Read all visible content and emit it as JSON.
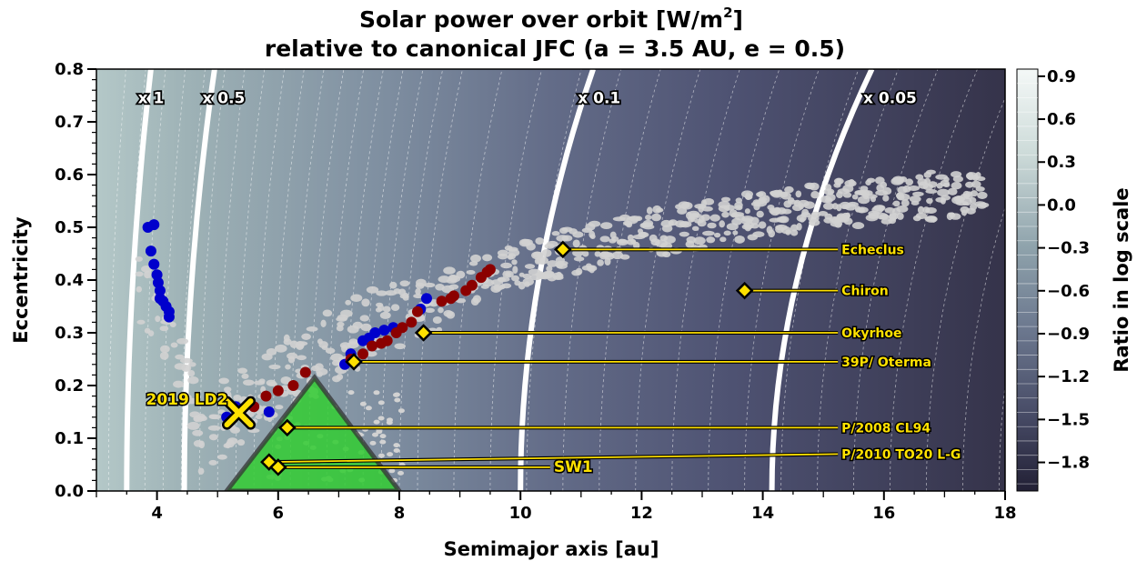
{
  "chart_data": {
    "type": "scatter",
    "title_line1": "Solar power over orbit [W/m",
    "title_sup": "2",
    "title_line1_end": "]",
    "title_line2": "relative to canonical JFC (a = 3.5 AU, e = 0.5)",
    "xlabel": "Semimajor axis [au]",
    "ylabel": "Eccentricity",
    "xlim": [
      3,
      18
    ],
    "ylim": [
      0,
      0.8
    ],
    "x_ticks": [
      "4",
      "6",
      "8",
      "10",
      "12",
      "14",
      "16",
      "18"
    ],
    "y_ticks": [
      "0.0",
      "0.1",
      "0.2",
      "0.3",
      "0.4",
      "0.5",
      "0.6",
      "0.7",
      "0.8"
    ],
    "colorbar": {
      "label": "Ratio in log scale",
      "range": [
        -2.0,
        0.95
      ],
      "ticks": [
        "0.9",
        "0.6",
        "0.3",
        "0.0",
        "−0.3",
        "−0.6",
        "−0.9",
        "−1.2",
        "−1.5",
        "−1.8"
      ],
      "tick_values": [
        0.9,
        0.6,
        0.3,
        0.0,
        -0.3,
        -0.6,
        -0.9,
        -1.2,
        -1.5,
        -1.8
      ],
      "color_high": "#e2ecea",
      "color_mid": "#6f7f93",
      "color_low": "#2c2a3d"
    },
    "power_contours": [
      {
        "label": "x 1",
        "a_at_e0": 3.5,
        "a_at_e08": 3.9
      },
      {
        "label": "x 0.5",
        "a_at_e0": 4.45,
        "a_at_e08": 4.95
      },
      {
        "label": "x 0.1",
        "a_at_e0": 10.0,
        "a_at_e08": 11.2
      },
      {
        "label": "x 0.05",
        "a_at_e0": 14.15,
        "a_at_e08": 15.8
      }
    ],
    "target_region": {
      "color": "#33cc33",
      "vertices": [
        [
          5.15,
          0.0
        ],
        [
          6.6,
          0.215
        ],
        [
          8.0,
          0.0
        ]
      ]
    },
    "blue_series": {
      "color": "#0000cc",
      "points": [
        [
          3.85,
          0.5
        ],
        [
          3.95,
          0.505
        ],
        [
          3.9,
          0.455
        ],
        [
          3.95,
          0.43
        ],
        [
          4.0,
          0.41
        ],
        [
          4.02,
          0.395
        ],
        [
          4.05,
          0.38
        ],
        [
          4.05,
          0.365
        ],
        [
          4.1,
          0.36
        ],
        [
          4.15,
          0.35
        ],
        [
          4.2,
          0.34
        ],
        [
          4.2,
          0.33
        ],
        [
          5.15,
          0.14
        ],
        [
          5.3,
          0.16
        ],
        [
          5.85,
          0.15
        ],
        [
          7.1,
          0.24
        ],
        [
          7.2,
          0.26
        ],
        [
          7.4,
          0.285
        ],
        [
          7.5,
          0.29
        ],
        [
          7.6,
          0.3
        ],
        [
          7.75,
          0.305
        ],
        [
          7.9,
          0.31
        ],
        [
          8.35,
          0.345
        ],
        [
          8.45,
          0.365
        ]
      ]
    },
    "red_series": {
      "color": "#8b0000",
      "points": [
        [
          5.6,
          0.16
        ],
        [
          5.8,
          0.18
        ],
        [
          6.0,
          0.19
        ],
        [
          6.25,
          0.2
        ],
        [
          6.45,
          0.225
        ],
        [
          7.2,
          0.25
        ],
        [
          7.4,
          0.26
        ],
        [
          7.55,
          0.275
        ],
        [
          7.7,
          0.28
        ],
        [
          7.8,
          0.285
        ],
        [
          7.95,
          0.3
        ],
        [
          8.05,
          0.31
        ],
        [
          8.2,
          0.32
        ],
        [
          8.3,
          0.34
        ],
        [
          8.7,
          0.36
        ],
        [
          8.9,
          0.37
        ],
        [
          9.1,
          0.38
        ],
        [
          9.2,
          0.39
        ],
        [
          9.35,
          0.405
        ],
        [
          9.45,
          0.415
        ],
        [
          9.5,
          0.42
        ],
        [
          8.85,
          0.365
        ]
      ]
    },
    "bodies": [
      {
        "name": "Echeclus",
        "a": 10.7,
        "e": 0.458,
        "label_a": 15.3,
        "label_e": 0.458
      },
      {
        "name": "Chiron",
        "a": 13.7,
        "e": 0.38,
        "label_a": 15.3,
        "label_e": 0.38
      },
      {
        "name": "Okyrhoe",
        "a": 8.4,
        "e": 0.3,
        "label_a": 15.3,
        "label_e": 0.3
      },
      {
        "name": "39P/ Oterma",
        "a": 7.25,
        "e": 0.245,
        "label_a": 15.3,
        "label_e": 0.245
      },
      {
        "name": "P/2008 CL94",
        "a": 6.15,
        "e": 0.12,
        "label_a": 15.3,
        "label_e": 0.12
      },
      {
        "name": "P/2010 TO20 L-G",
        "a": 5.85,
        "e": 0.055,
        "label_a": 15.3,
        "label_e": 0.07
      },
      {
        "name": "SW1",
        "a": 6.0,
        "e": 0.045,
        "label_a": 10.55,
        "label_e": 0.045
      }
    ],
    "highlight": {
      "name": "2019 LD2",
      "a": 5.35,
      "e": 0.148
    }
  }
}
